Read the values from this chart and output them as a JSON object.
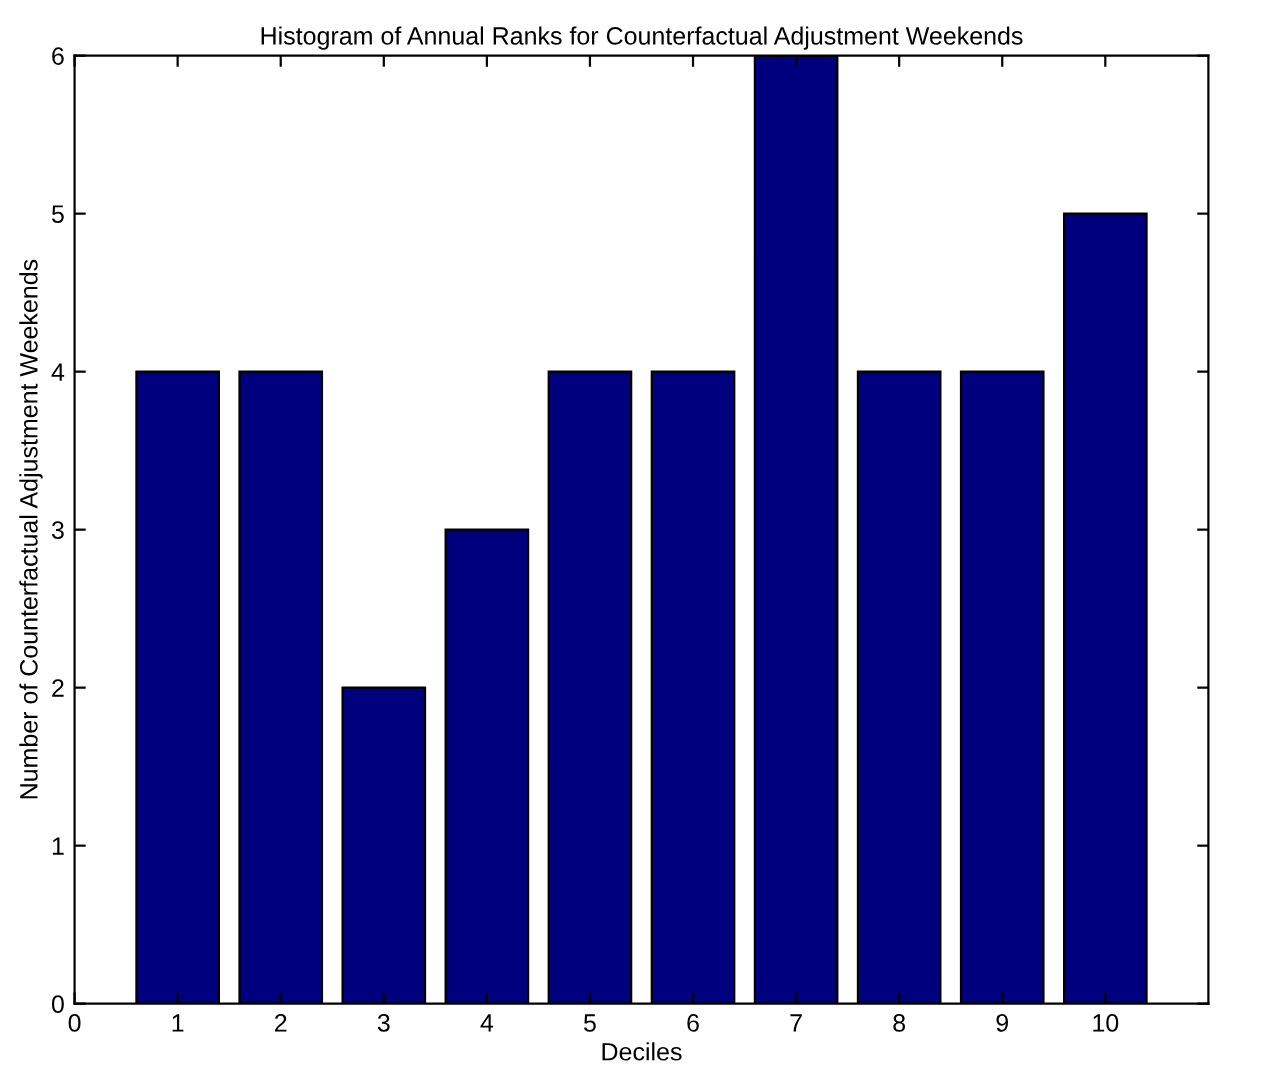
{
  "chart_data": {
    "type": "bar",
    "title": "Histogram of Annual Ranks for Counterfactual Adjustment Weekends",
    "xlabel": "Deciles",
    "ylabel": "Number of Counterfactual Adjustment Weekends",
    "x": [
      1,
      2,
      3,
      4,
      5,
      6,
      7,
      8,
      9,
      10
    ],
    "values": [
      4,
      4,
      2,
      3,
      4,
      4,
      6,
      4,
      4,
      5
    ],
    "color": "#00007f",
    "xlim": [
      0,
      11
    ],
    "xticks": [
      0,
      1,
      2,
      3,
      4,
      5,
      6,
      7,
      8,
      9,
      10
    ],
    "ylim": [
      0,
      6
    ],
    "yticks": [
      0,
      1,
      2,
      3,
      4,
      5,
      6
    ],
    "grid": false,
    "legend": false
  }
}
